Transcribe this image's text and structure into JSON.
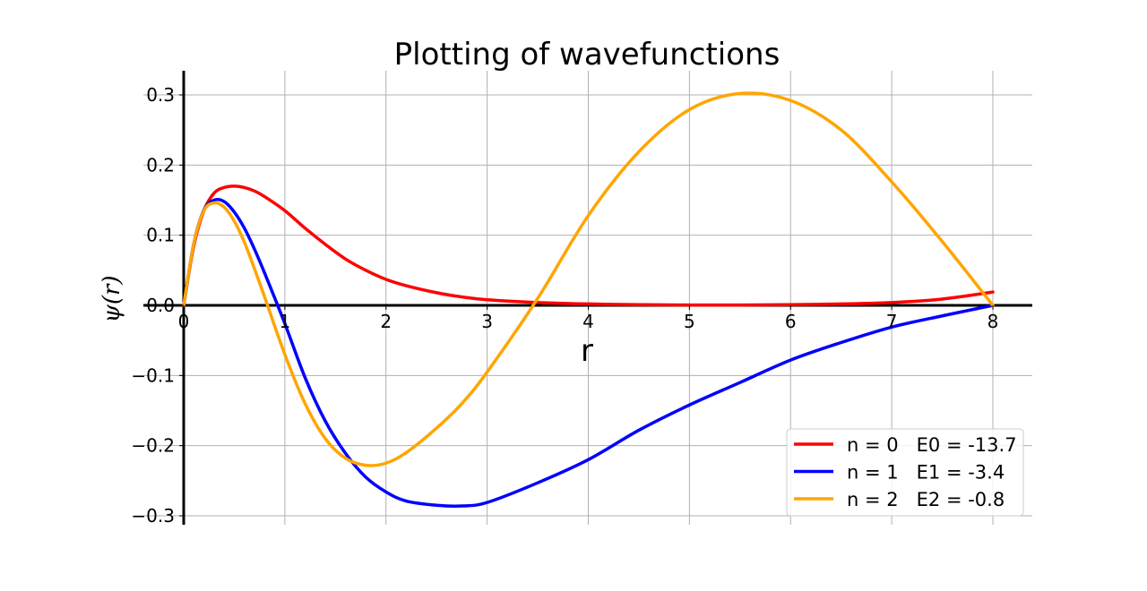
{
  "chart_data": {
    "type": "line",
    "title": "Plotting of wavefunctions",
    "xlabel": "r",
    "ylabel": "ψ(r)",
    "xlim": [
      0,
      8.4
    ],
    "ylim": [
      -0.32,
      0.335
    ],
    "x_ticks": [
      0,
      1,
      2,
      3,
      4,
      5,
      6,
      7,
      8
    ],
    "x_tick_labels": [
      "0",
      "1",
      "2",
      "3",
      "4",
      "5",
      "6",
      "7",
      "8"
    ],
    "y_ticks": [
      -0.3,
      -0.2,
      -0.1,
      0.0,
      0.1,
      0.2,
      0.3
    ],
    "y_tick_labels": [
      "−0.3",
      "−0.2",
      "−0.1",
      "0.0",
      "0.1",
      "0.2",
      "0.3"
    ],
    "grid": true,
    "legend_position": "lower-right",
    "x": [
      0,
      0.1,
      0.2,
      0.3,
      0.4,
      0.5,
      0.6,
      0.7,
      0.8,
      1.0,
      1.2,
      1.4,
      1.6,
      1.8,
      2.0,
      2.2,
      2.5,
      2.75,
      3.0,
      3.5,
      4.0,
      4.5,
      5.0,
      5.5,
      6.0,
      6.5,
      7.0,
      7.5,
      8.0
    ],
    "series": [
      {
        "name": "n = 0   E0 = -13.7",
        "color": "#ff0000",
        "values": [
          0,
          0.085,
          0.135,
          0.16,
          0.168,
          0.17,
          0.168,
          0.163,
          0.155,
          0.135,
          0.11,
          0.087,
          0.066,
          0.05,
          0.037,
          0.028,
          0.018,
          0.012,
          0.008,
          0.004,
          0.002,
          0.001,
          0.0005,
          0.0005,
          0.001,
          0.002,
          0.004,
          0.009,
          0.019
        ]
      },
      {
        "name": "n = 1   E1 = -3.4",
        "color": "#0000ff",
        "values": [
          0,
          0.088,
          0.136,
          0.15,
          0.148,
          0.133,
          0.11,
          0.08,
          0.046,
          -0.026,
          -0.103,
          -0.165,
          -0.211,
          -0.245,
          -0.266,
          -0.279,
          -0.285,
          -0.286,
          -0.281,
          -0.253,
          -0.22,
          -0.178,
          -0.142,
          -0.11,
          -0.078,
          -0.053,
          -0.031,
          -0.015,
          0.0
        ]
      },
      {
        "name": "n = 2   E2 = -0.8",
        "color": "#ffa500",
        "values": [
          0,
          0.088,
          0.135,
          0.146,
          0.14,
          0.12,
          0.09,
          0.052,
          0.012,
          -0.07,
          -0.14,
          -0.19,
          -0.218,
          -0.228,
          -0.225,
          -0.21,
          -0.175,
          -0.14,
          -0.095,
          0.01,
          0.128,
          0.219,
          0.279,
          0.302,
          0.292,
          0.25,
          0.176,
          0.091,
          0.0
        ]
      }
    ]
  }
}
